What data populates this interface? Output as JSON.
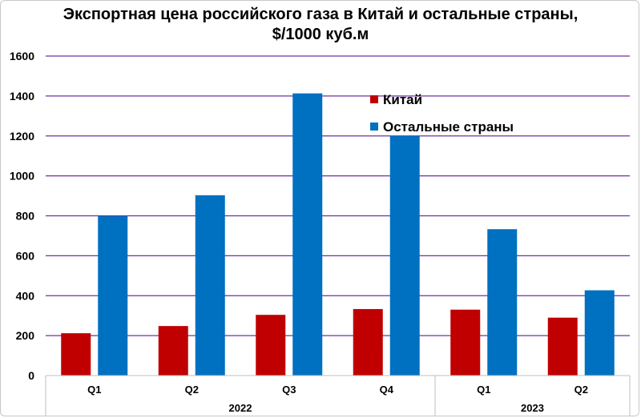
{
  "chart_data": {
    "type": "bar",
    "title_line1": "Экспортная цена российского газа в Китай и остальные страны,",
    "title_line2": "$/1000 куб.м",
    "categories": [
      "Q1",
      "Q2",
      "Q3",
      "Q4",
      "Q1",
      "Q2"
    ],
    "groups": [
      {
        "label": "2022",
        "span": 4
      },
      {
        "label": "2023",
        "span": 2
      }
    ],
    "series": [
      {
        "name": "Китай",
        "color": "#c00000",
        "values": [
          212,
          248,
          304,
          333,
          330,
          290
        ]
      },
      {
        "name": "Остальные страны",
        "color": "#0070c0",
        "values": [
          798,
          903,
          1413,
          1200,
          733,
          427
        ]
      }
    ],
    "ylim": [
      0,
      1600
    ],
    "yticks": [
      0,
      200,
      400,
      600,
      800,
      1000,
      1200,
      1400,
      1600
    ],
    "grid": true,
    "grid_color": "#7030a0",
    "legend_position": "inside-top-center"
  }
}
